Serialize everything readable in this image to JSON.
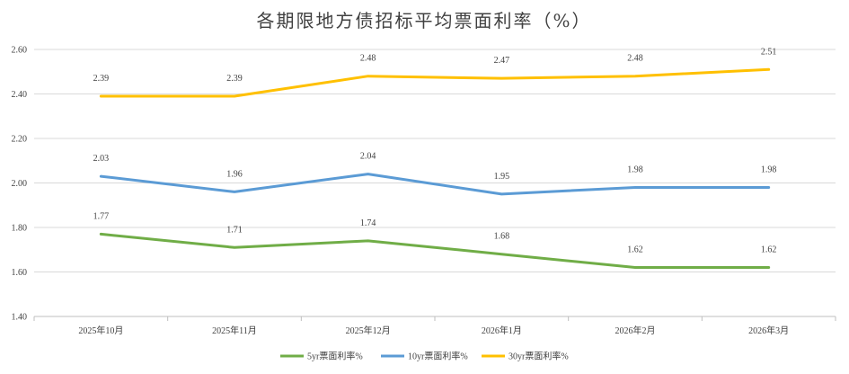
{
  "chart_data": {
    "type": "line",
    "title": "各期限地方债招标平均票面利率（%）",
    "categories": [
      "2025年10月",
      "2025年11月",
      "2025年12月",
      "2026年1月",
      "2026年2月",
      "2026年3月"
    ],
    "ylim": [
      1.4,
      2.6
    ],
    "yticks": [
      "1.40",
      "1.60",
      "1.80",
      "2.00",
      "2.20",
      "2.40",
      "2.60"
    ],
    "grid": true,
    "legend_position": "bottom",
    "series": [
      {
        "name": "5yr票面利率%",
        "color": "#70ad47",
        "values": [
          1.77,
          1.71,
          1.74,
          1.68,
          1.62,
          1.62
        ],
        "labels": [
          "1.77",
          "1.71",
          "1.74",
          "1.68",
          "1.62",
          "1.62"
        ]
      },
      {
        "name": "10yr票面利率%",
        "color": "#5b9bd5",
        "values": [
          2.03,
          1.96,
          2.04,
          1.95,
          1.98,
          1.98
        ],
        "labels": [
          "2.03",
          "1.96",
          "2.04",
          "1.95",
          "1.98",
          "1.98"
        ]
      },
      {
        "name": "30yr票面利率%",
        "color": "#ffc000",
        "values": [
          2.39,
          2.39,
          2.48,
          2.47,
          2.48,
          2.51
        ],
        "labels": [
          "2.39",
          "2.39",
          "2.48",
          "2.47",
          "2.48",
          "2.51"
        ]
      }
    ]
  }
}
